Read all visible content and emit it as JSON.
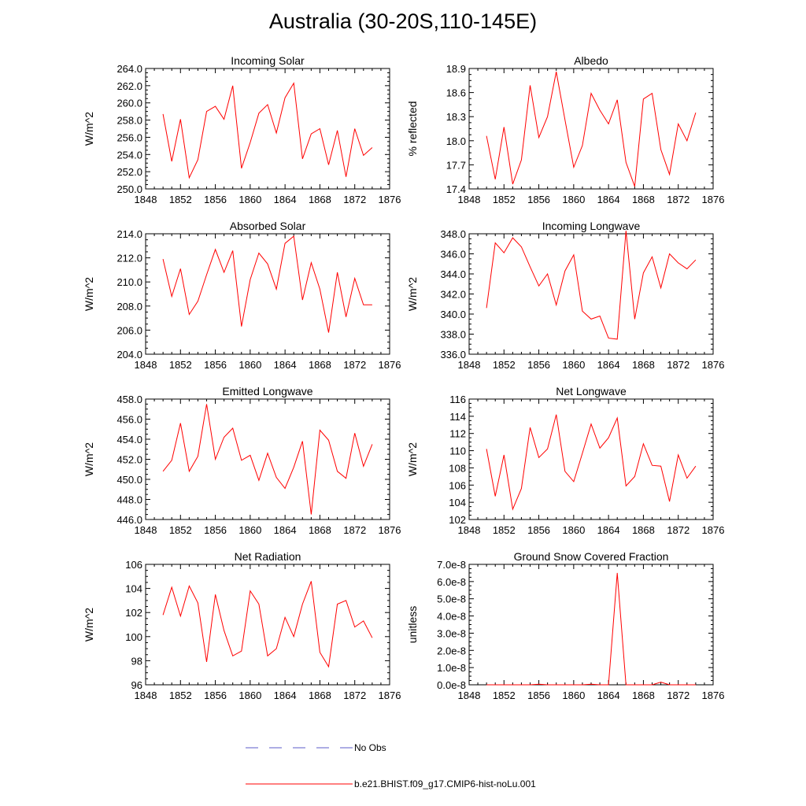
{
  "title": "Australia (30-20S,110-145E)",
  "colors": {
    "model": "#ff0000",
    "obs": "#5b5bc8",
    "axis": "#000000"
  },
  "chart_data": [
    {
      "type": "line",
      "title": "Incoming Solar",
      "ylabel": "W/m^2",
      "xlim": [
        1848,
        1876
      ],
      "ylim": [
        250,
        264
      ],
      "x_ticks": [
        "1848",
        "1852",
        "1856",
        "1860",
        "1864",
        "1868",
        "1872",
        "1876"
      ],
      "y_ticks": [
        "250.0",
        "252.0",
        "254.0",
        "256.0",
        "258.0",
        "260.0",
        "262.0",
        "264.0"
      ],
      "series": [
        {
          "name": "b.e21.BHIST.f09_g17.CMIP6-hist-noLu.001",
          "x": [
            1850,
            1851,
            1852,
            1853,
            1854,
            1855,
            1856,
            1857,
            1858,
            1859,
            1860,
            1861,
            1862,
            1863,
            1864,
            1865,
            1866,
            1867,
            1868,
            1869,
            1870,
            1871,
            1872,
            1873,
            1874
          ],
          "values": [
            258.7,
            253.2,
            258.1,
            251.3,
            253.4,
            259.0,
            259.6,
            258.1,
            262.0,
            252.4,
            255.4,
            258.8,
            259.8,
            256.5,
            260.6,
            262.3,
            253.5,
            256.4,
            257.0,
            252.8,
            256.8,
            251.4,
            257.0,
            253.9,
            254.8
          ]
        }
      ]
    },
    {
      "type": "line",
      "title": "Albedo",
      "ylabel": "% reflected",
      "xlim": [
        1848,
        1876
      ],
      "ylim": [
        17.4,
        18.9
      ],
      "x_ticks": [
        "1848",
        "1852",
        "1856",
        "1860",
        "1864",
        "1868",
        "1872",
        "1876"
      ],
      "y_ticks": [
        "17.4",
        "17.7",
        "18.0",
        "18.3",
        "18.6",
        "18.9"
      ],
      "series": [
        {
          "name": "b.e21.BHIST.f09_g17.CMIP6-hist-noLu.001",
          "x": [
            1850,
            1851,
            1852,
            1853,
            1854,
            1855,
            1856,
            1857,
            1858,
            1859,
            1860,
            1861,
            1862,
            1863,
            1864,
            1865,
            1866,
            1867,
            1868,
            1869,
            1870,
            1871,
            1872,
            1873,
            1874
          ],
          "values": [
            18.06,
            17.52,
            18.17,
            17.46,
            17.76,
            18.69,
            18.04,
            18.3,
            18.86,
            18.26,
            17.67,
            17.94,
            18.59,
            18.38,
            18.21,
            18.51,
            17.73,
            17.43,
            18.52,
            18.59,
            17.89,
            17.58,
            18.21,
            18.0,
            18.35
          ]
        }
      ]
    },
    {
      "type": "line",
      "title": "Absorbed Solar",
      "ylabel": "W/m^2",
      "xlim": [
        1848,
        1876
      ],
      "ylim": [
        204,
        214
      ],
      "x_ticks": [
        "1848",
        "1852",
        "1856",
        "1860",
        "1864",
        "1868",
        "1872",
        "1876"
      ],
      "y_ticks": [
        "204.0",
        "206.0",
        "208.0",
        "210.0",
        "212.0",
        "214.0"
      ],
      "series": [
        {
          "name": "b.e21.BHIST.f09_g17.CMIP6-hist-noLu.001",
          "x": [
            1850,
            1851,
            1852,
            1853,
            1854,
            1855,
            1856,
            1857,
            1858,
            1859,
            1860,
            1861,
            1862,
            1863,
            1864,
            1865,
            1866,
            1867,
            1868,
            1869,
            1870,
            1871,
            1872,
            1873,
            1874
          ],
          "values": [
            211.9,
            208.8,
            211.1,
            207.3,
            208.4,
            210.6,
            212.7,
            210.8,
            212.6,
            206.3,
            210.2,
            212.4,
            211.5,
            209.4,
            213.2,
            213.8,
            208.5,
            211.6,
            209.4,
            205.8,
            210.8,
            207.1,
            210.3,
            208.1,
            208.1
          ]
        }
      ]
    },
    {
      "type": "line",
      "title": "Incoming Longwave",
      "ylabel": "W/m^2",
      "xlim": [
        1848,
        1876
      ],
      "ylim": [
        336,
        348
      ],
      "x_ticks": [
        "1848",
        "1852",
        "1856",
        "1860",
        "1864",
        "1868",
        "1872",
        "1876"
      ],
      "y_ticks": [
        "336.0",
        "338.0",
        "340.0",
        "342.0",
        "344.0",
        "346.0",
        "348.0"
      ],
      "series": [
        {
          "name": "b.e21.BHIST.f09_g17.CMIP6-hist-noLu.001",
          "x": [
            1850,
            1851,
            1852,
            1853,
            1854,
            1855,
            1856,
            1857,
            1858,
            1859,
            1860,
            1861,
            1862,
            1863,
            1864,
            1865,
            1866,
            1867,
            1868,
            1869,
            1870,
            1871,
            1872,
            1873,
            1874
          ],
          "values": [
            340.6,
            347.1,
            346.1,
            347.6,
            346.7,
            344.7,
            342.8,
            344.0,
            340.9,
            344.3,
            345.9,
            340.3,
            339.5,
            339.8,
            337.6,
            337.5,
            348.3,
            339.5,
            344.1,
            345.7,
            342.6,
            346.0,
            345.1,
            344.5,
            345.4
          ]
        }
      ]
    },
    {
      "type": "line",
      "title": "Emitted Longwave",
      "ylabel": "W/m^2",
      "xlim": [
        1848,
        1876
      ],
      "ylim": [
        446,
        458
      ],
      "x_ticks": [
        "1848",
        "1852",
        "1856",
        "1860",
        "1864",
        "1868",
        "1872",
        "1876"
      ],
      "y_ticks": [
        "446.0",
        "448.0",
        "450.0",
        "452.0",
        "454.0",
        "456.0",
        "458.0"
      ],
      "series": [
        {
          "name": "b.e21.BHIST.f09_g17.CMIP6-hist-noLu.001",
          "x": [
            1850,
            1851,
            1852,
            1853,
            1854,
            1855,
            1856,
            1857,
            1858,
            1859,
            1860,
            1861,
            1862,
            1863,
            1864,
            1865,
            1866,
            1867,
            1868,
            1869,
            1870,
            1871,
            1872,
            1873,
            1874
          ],
          "values": [
            450.8,
            451.9,
            455.6,
            450.8,
            452.3,
            457.5,
            452.0,
            454.2,
            455.1,
            451.9,
            452.4,
            449.9,
            452.6,
            450.2,
            449.1,
            451.2,
            453.8,
            446.5,
            454.9,
            453.9,
            450.8,
            450.1,
            454.6,
            451.3,
            453.5
          ]
        }
      ]
    },
    {
      "type": "line",
      "title": "Net Longwave",
      "ylabel": "W/m^2",
      "xlim": [
        1848,
        1876
      ],
      "ylim": [
        102,
        116
      ],
      "x_ticks": [
        "1848",
        "1852",
        "1856",
        "1860",
        "1864",
        "1868",
        "1872",
        "1876"
      ],
      "y_ticks": [
        "102",
        "104",
        "106",
        "108",
        "110",
        "112",
        "114",
        "116"
      ],
      "series": [
        {
          "name": "b.e21.BHIST.f09_g17.CMIP6-hist-noLu.001",
          "x": [
            1850,
            1851,
            1852,
            1853,
            1854,
            1855,
            1856,
            1857,
            1858,
            1859,
            1860,
            1861,
            1862,
            1863,
            1864,
            1865,
            1866,
            1867,
            1868,
            1869,
            1870,
            1871,
            1872,
            1873,
            1874
          ],
          "values": [
            110.2,
            104.7,
            109.5,
            103.2,
            105.6,
            112.7,
            109.2,
            110.2,
            114.2,
            107.6,
            106.4,
            109.7,
            113.1,
            110.3,
            111.5,
            113.8,
            105.9,
            107.0,
            110.8,
            108.3,
            108.2,
            104.1,
            109.5,
            106.8,
            108.2
          ]
        }
      ]
    },
    {
      "type": "line",
      "title": "Net Radiation",
      "ylabel": "W/m^2",
      "xlim": [
        1848,
        1876
      ],
      "ylim": [
        96,
        106
      ],
      "x_ticks": [
        "1848",
        "1852",
        "1856",
        "1860",
        "1864",
        "1868",
        "1872",
        "1876"
      ],
      "y_ticks": [
        "96",
        "98",
        "100",
        "102",
        "104",
        "106"
      ],
      "series": [
        {
          "name": "b.e21.BHIST.f09_g17.CMIP6-hist-noLu.001",
          "x": [
            1850,
            1851,
            1852,
            1853,
            1854,
            1855,
            1856,
            1857,
            1858,
            1859,
            1860,
            1861,
            1862,
            1863,
            1864,
            1865,
            1866,
            1867,
            1868,
            1869,
            1870,
            1871,
            1872,
            1873,
            1874
          ],
          "values": [
            101.8,
            104.1,
            101.7,
            104.2,
            102.8,
            97.9,
            103.5,
            100.5,
            98.4,
            98.8,
            103.8,
            102.7,
            98.4,
            99.0,
            101.6,
            100.0,
            102.7,
            104.6,
            98.7,
            97.5,
            102.7,
            103.0,
            100.8,
            101.3,
            99.9
          ]
        }
      ]
    },
    {
      "type": "line",
      "title": "Ground Snow Covered Fraction",
      "ylabel": "unitless",
      "xlim": [
        1848,
        1876
      ],
      "ylim": [
        0,
        7e-08
      ],
      "x_ticks": [
        "1848",
        "1852",
        "1856",
        "1860",
        "1864",
        "1868",
        "1872",
        "1876"
      ],
      "y_ticks": [
        "0.0e-8",
        "1.0e-8",
        "2.0e-8",
        "3.0e-8",
        "4.0e-8",
        "5.0e-8",
        "6.0e-8",
        "7.0e-8"
      ],
      "series": [
        {
          "name": "b.e21.BHIST.f09_g17.CMIP6-hist-noLu.001",
          "x": [
            1850,
            1851,
            1852,
            1853,
            1854,
            1855,
            1856,
            1857,
            1858,
            1859,
            1860,
            1861,
            1862,
            1863,
            1864,
            1865,
            1866,
            1867,
            1868,
            1869,
            1870,
            1871,
            1872,
            1873,
            1874
          ],
          "values": [
            0,
            0,
            0,
            0,
            0,
            0,
            3e-10,
            0,
            0,
            0,
            0,
            0,
            3e-10,
            0,
            0,
            6.5e-08,
            0,
            0,
            0,
            0,
            1.5e-09,
            0,
            0,
            0,
            0
          ]
        }
      ]
    }
  ],
  "legend": {
    "obs_label": "No Obs",
    "model_label": "b.e21.BHIST.f09_g17.CMIP6-hist-noLu.001"
  }
}
